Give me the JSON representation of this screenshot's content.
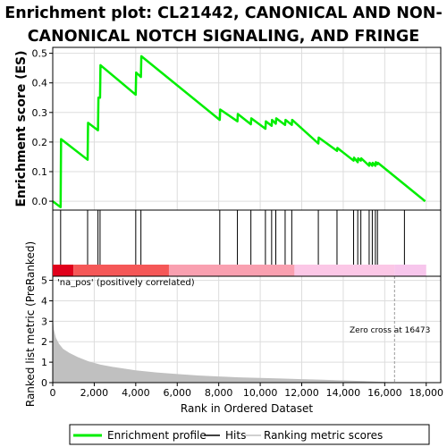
{
  "title_line1": "Enrichment plot: CL21442, CANONICAL AND NON-",
  "title_line2": "CANONICAL NOTCH SIGNALING, AND FRINGE",
  "chart_data": [
    {
      "type": "line",
      "name": "enrichment-score-panel",
      "ylabel": "Enrichment score (ES)",
      "ylim": [
        -0.03,
        0.52
      ],
      "xlim": [
        0,
        18700
      ],
      "yticks": [
        "0.0",
        "0.1",
        "0.2",
        "0.3",
        "0.4",
        "0.5"
      ],
      "ytick_values": [
        0,
        0.1,
        0.2,
        0.3,
        0.4,
        0.5
      ],
      "grid": true,
      "color": "#00ee00",
      "x": [
        0,
        380,
        400,
        1680,
        1700,
        2180,
        2200,
        2280,
        2300,
        4000,
        4020,
        4250,
        4270,
        8050,
        8070,
        8900,
        8920,
        9550,
        9570,
        10250,
        10270,
        10550,
        10570,
        10750,
        10770,
        11200,
        11220,
        11520,
        11540,
        12800,
        12820,
        13700,
        13720,
        14500,
        14520,
        14700,
        14720,
        14850,
        14870,
        15250,
        15270,
        15400,
        15420,
        15550,
        15570,
        15650,
        15670,
        17950
      ],
      "y": [
        0.0,
        -0.02,
        0.21,
        0.14,
        0.265,
        0.24,
        0.35,
        0.35,
        0.46,
        0.36,
        0.435,
        0.42,
        0.49,
        0.275,
        0.31,
        0.27,
        0.295,
        0.26,
        0.28,
        0.245,
        0.27,
        0.255,
        0.275,
        0.262,
        0.28,
        0.258,
        0.275,
        0.258,
        0.275,
        0.195,
        0.215,
        0.17,
        0.18,
        0.137,
        0.147,
        0.132,
        0.145,
        0.137,
        0.145,
        0.12,
        0.13,
        0.12,
        0.13,
        0.12,
        0.132,
        0.125,
        0.13,
        0.0
      ]
    },
    {
      "type": "bar",
      "name": "hits-panel",
      "hits": [
        380,
        1680,
        2180,
        2280,
        4000,
        4250,
        8050,
        8900,
        9550,
        10250,
        10550,
        10750,
        11200,
        11520,
        12800,
        13700,
        14500,
        14700,
        14850,
        15250,
        15400,
        15550,
        15650,
        16950
      ],
      "color_bar_segments": [
        {
          "from": 0,
          "to": 1000,
          "color": "#e0001b"
        },
        {
          "from": 1000,
          "to": 5600,
          "color": "#f55757"
        },
        {
          "from": 5600,
          "to": 11650,
          "color": "#f9a0b0"
        },
        {
          "from": 11650,
          "to": 16473,
          "color": "#fbc7e6"
        },
        {
          "from": 16473,
          "to": 18000,
          "color": "#f7c6ec"
        }
      ]
    },
    {
      "type": "area",
      "name": "ranked-metric-panel",
      "xlabel": "Rank in Ordered Dataset",
      "ylabel": "Ranked list metric (PreRanked)",
      "ylim": [
        0,
        5.2
      ],
      "yticks": [
        "0",
        "1",
        "2",
        "3",
        "4",
        "5"
      ],
      "ytick_values": [
        0,
        1,
        2,
        3,
        4,
        5
      ],
      "xticks": [
        "0",
        "2,000",
        "4,000",
        "6,000",
        "8,000",
        "10,000",
        "12,000",
        "14,000",
        "16,000",
        "18,000"
      ],
      "xtick_values": [
        0,
        2000,
        4000,
        6000,
        8000,
        10000,
        12000,
        14000,
        16000,
        18000
      ],
      "color": "#c0c0c0",
      "x": [
        0,
        50,
        150,
        300,
        500,
        800,
        1200,
        1700,
        2300,
        3000,
        4000,
        5000,
        6000,
        7000,
        8000,
        9000,
        10000,
        11000,
        12000,
        13000,
        14000,
        15000,
        16000,
        16473
      ],
      "y": [
        3.3,
        2.6,
        2.2,
        1.9,
        1.65,
        1.45,
        1.25,
        1.05,
        0.88,
        0.75,
        0.6,
        0.5,
        0.42,
        0.35,
        0.3,
        0.26,
        0.23,
        0.2,
        0.17,
        0.14,
        0.11,
        0.08,
        0.04,
        0.0
      ],
      "annotations": [
        {
          "text": "'na_pos' (positively correlated)",
          "color": "#e04040"
        },
        {
          "text": "Zero cross at 16473",
          "x": 16473,
          "color": "#333333"
        }
      ]
    }
  ],
  "legend": {
    "items": [
      {
        "label": "Enrichment profile",
        "color": "#00ee00",
        "kind": "line"
      },
      {
        "label": "Hits",
        "color": "#000000",
        "kind": "line"
      },
      {
        "label": "Ranking metric scores",
        "color": "#c0c0c0",
        "kind": "line"
      }
    ]
  }
}
